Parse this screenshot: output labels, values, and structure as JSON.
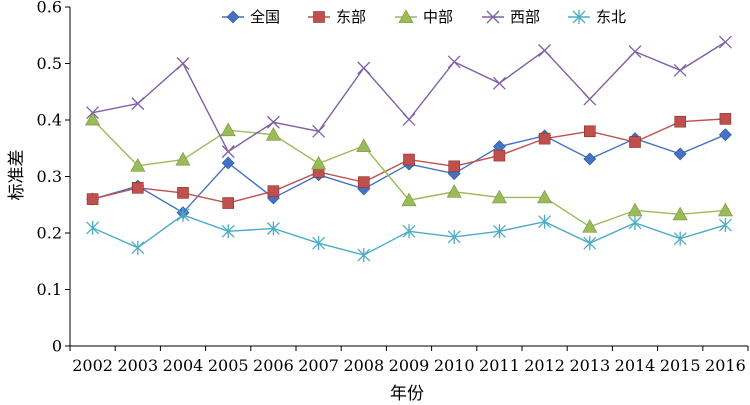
{
  "chart_data": {
    "type": "line",
    "title": "",
    "xlabel": "年份",
    "ylabel": "标准差",
    "ylim": [
      0,
      0.6
    ],
    "yticks": [
      "0",
      "0.1",
      "0.2",
      "0.3",
      "0.4",
      "0.5",
      "0.6"
    ],
    "categories": [
      "2002",
      "2003",
      "2004",
      "2005",
      "2006",
      "2007",
      "2008",
      "2009",
      "2010",
      "2011",
      "2012",
      "2013",
      "2014",
      "2015",
      "2016"
    ],
    "grid": false,
    "legend_position": "top",
    "series": [
      {
        "name": "全国",
        "color": "#4472C4",
        "marker": "diamond",
        "values": [
          0.26,
          0.283,
          0.236,
          0.324,
          0.262,
          0.303,
          0.278,
          0.322,
          0.305,
          0.353,
          0.372,
          0.331,
          0.367,
          0.34,
          0.374
        ]
      },
      {
        "name": "东部",
        "color": "#C0504D",
        "marker": "square",
        "values": [
          0.26,
          0.28,
          0.271,
          0.253,
          0.274,
          0.308,
          0.29,
          0.33,
          0.318,
          0.337,
          0.367,
          0.38,
          0.361,
          0.397,
          0.402
        ]
      },
      {
        "name": "中部",
        "color": "#9BBB59",
        "marker": "triangle",
        "values": [
          0.401,
          0.319,
          0.33,
          0.382,
          0.374,
          0.323,
          0.354,
          0.258,
          0.273,
          0.263,
          0.263,
          0.211,
          0.24,
          0.233,
          0.24
        ]
      },
      {
        "name": "西部",
        "color": "#7F5FA6",
        "marker": "x",
        "values": [
          0.413,
          0.429,
          0.5,
          0.344,
          0.396,
          0.38,
          0.492,
          0.401,
          0.503,
          0.465,
          0.523,
          0.437,
          0.521,
          0.488,
          0.538
        ]
      },
      {
        "name": "东北",
        "color": "#4BACC6",
        "marker": "star",
        "values": [
          0.209,
          0.174,
          0.232,
          0.203,
          0.208,
          0.182,
          0.161,
          0.203,
          0.193,
          0.203,
          0.22,
          0.182,
          0.218,
          0.19,
          0.214
        ]
      }
    ]
  }
}
